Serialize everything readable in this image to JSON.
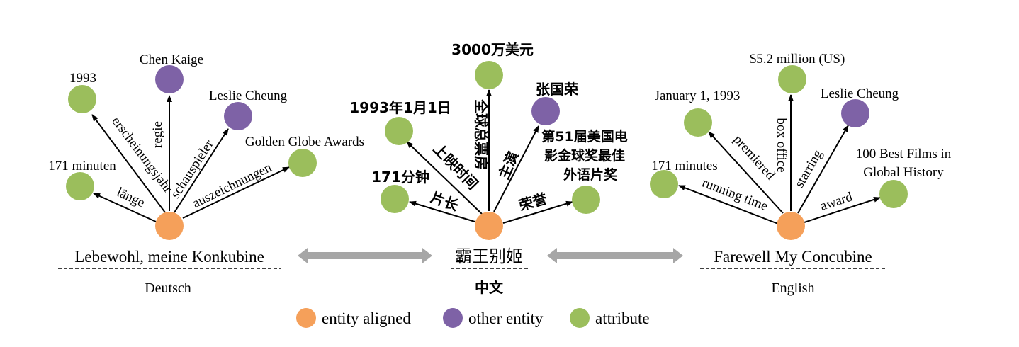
{
  "colors": {
    "entity_aligned": "#F5A05A",
    "other_entity": "#7E62A6",
    "attribute": "#9BBE5C",
    "arrow": "#A6A6A6"
  },
  "graphs": {
    "de": {
      "entity": "Lebewohl, meine Konkubine",
      "language": "Deutsch",
      "nodes": [
        {
          "label": "1993",
          "relation": "erscheinungsjahr",
          "kind": "attribute"
        },
        {
          "label": "Chen Kaige",
          "relation": "regie",
          "kind": "other_entity"
        },
        {
          "label": "Leslie Cheung",
          "relation": "schauspieler",
          "kind": "other_entity"
        },
        {
          "label": "Golden Globe Awards",
          "relation": "auszeichnungen",
          "kind": "attribute"
        },
        {
          "label": "171 minuten",
          "relation": "länge",
          "kind": "attribute"
        }
      ]
    },
    "zh": {
      "entity": "霸王别姬",
      "language": "中文",
      "nodes": [
        {
          "label": "3000万美元",
          "relation": "全球总票房",
          "kind": "attribute"
        },
        {
          "label": "1993年1月1日",
          "relation": "上映时间",
          "kind": "attribute"
        },
        {
          "label": "张国荣",
          "relation": "主演",
          "kind": "other_entity"
        },
        {
          "label": "第51届美国电影金球奖最佳外语片奖",
          "label_lines": [
            "第51届美国电",
            "影金球奖最佳",
            "外语片奖"
          ],
          "relation": "荣誉",
          "kind": "attribute"
        },
        {
          "label": "171分钟",
          "relation": "片长",
          "kind": "attribute"
        }
      ]
    },
    "en": {
      "entity": "Farewell My Concubine",
      "language": "English",
      "nodes": [
        {
          "label": "$5.2 million (US)",
          "relation": "box office",
          "kind": "attribute"
        },
        {
          "label": "January 1, 1993",
          "relation": "premiered",
          "kind": "attribute"
        },
        {
          "label": "Leslie Cheung",
          "relation": "starring",
          "kind": "other_entity"
        },
        {
          "label": "100 Best Films in Global History",
          "label_lines": [
            "100 Best Films in",
            "Global History"
          ],
          "relation": "award",
          "kind": "attribute"
        },
        {
          "label": "171 minutes",
          "relation": "running time",
          "kind": "attribute"
        }
      ]
    }
  },
  "legend": [
    {
      "label": "entity aligned",
      "kind": "entity_aligned"
    },
    {
      "label": "other entity",
      "kind": "other_entity"
    },
    {
      "label": "attribute",
      "kind": "attribute"
    }
  ]
}
